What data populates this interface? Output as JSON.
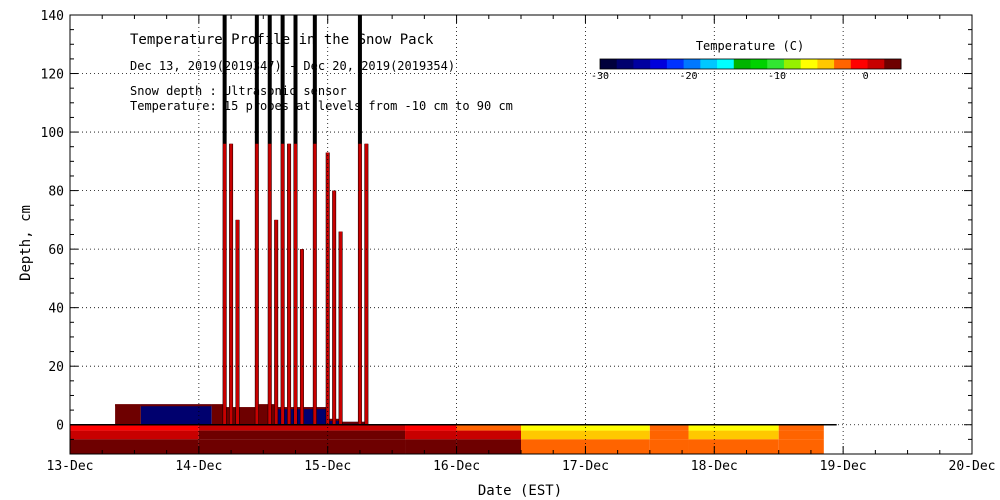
{
  "chart_data": {
    "type": "heatmap",
    "title": "Temperature Profile in the Snow Pack",
    "subtitle": "Dec 13, 2019(2019347) - Dec 20, 2019(2019354)",
    "annotations": [
      "Snow depth : Ultrasonic sensor",
      "Temperature: 15 probes at levels from -10 cm to 90 cm"
    ],
    "xlabel": "Date (EST)",
    "ylabel": "Depth, cm",
    "x_ticks": [
      "13-Dec",
      "14-Dec",
      "15-Dec",
      "16-Dec",
      "17-Dec",
      "18-Dec",
      "19-Dec",
      "20-Dec"
    ],
    "xlim_days": [
      13,
      20
    ],
    "ylim": [
      -10,
      140
    ],
    "y_ticks": [
      0,
      20,
      40,
      60,
      80,
      100,
      120,
      140
    ],
    "grid": true,
    "colorbar": {
      "title": "Temperature (C)",
      "range": [
        -30,
        4
      ],
      "tick_values": [
        -30,
        -20,
        -10,
        0
      ],
      "tick_labels": [
        "-30",
        "-20",
        "-10",
        "0"
      ],
      "colors": [
        "#00003c",
        "#00006e",
        "#0000a0",
        "#0000dc",
        "#0032ff",
        "#0078ff",
        "#00c8ff",
        "#00ffff",
        "#00b400",
        "#00d200",
        "#32e632",
        "#96f000",
        "#ffff00",
        "#ffc800",
        "#ff6400",
        "#ff0000",
        "#c80000",
        "#6e0000"
      ]
    },
    "soil_temperature_bands": [
      {
        "day_start": 13.0,
        "day_end": 14.0,
        "top_temp": -1,
        "mid_temp": 2,
        "bottom_temp": 3
      },
      {
        "day_start": 14.0,
        "day_end": 15.6,
        "top_temp": 2,
        "mid_temp": 3,
        "bottom_temp": 3
      },
      {
        "day_start": 15.6,
        "day_end": 16.0,
        "top_temp": -1,
        "mid_temp": 2,
        "bottom_temp": 3
      },
      {
        "day_start": 16.0,
        "day_end": 16.5,
        "top_temp": -2,
        "mid_temp": 1,
        "bottom_temp": 3
      },
      {
        "day_start": 16.5,
        "day_end": 17.5,
        "top_temp": -7,
        "mid_temp": -5,
        "bottom_temp": -3
      },
      {
        "day_start": 17.5,
        "day_end": 17.8,
        "top_temp": -3,
        "mid_temp": -2,
        "bottom_temp": -3
      },
      {
        "day_start": 17.8,
        "day_end": 18.5,
        "top_temp": -6,
        "mid_temp": -4,
        "bottom_temp": -3
      },
      {
        "day_start": 18.5,
        "day_end": 18.85,
        "top_temp": -3,
        "mid_temp": -3,
        "bottom_temp": -3
      }
    ],
    "snow_depth_low": [
      {
        "day_start": 13.35,
        "day_end": 13.55,
        "depth": 7,
        "temp": 3
      },
      {
        "day_start": 13.55,
        "day_end": 14.1,
        "depth": 7,
        "temp": -28
      },
      {
        "day_start": 14.1,
        "day_end": 14.2,
        "depth": 7,
        "temp": 3
      },
      {
        "day_start": 14.2,
        "day_end": 14.45,
        "depth": 6,
        "temp": 3
      },
      {
        "day_start": 14.45,
        "day_end": 14.6,
        "depth": 7,
        "temp": 3
      },
      {
        "day_start": 14.6,
        "day_end": 15.0,
        "depth": 6,
        "temp": -28
      },
      {
        "day_start": 15.0,
        "day_end": 15.1,
        "depth": 2,
        "temp": -28
      },
      {
        "day_start": 15.1,
        "day_end": 15.3,
        "depth": 1,
        "temp": -28
      }
    ],
    "snow_depth_spikes": [
      {
        "day": 14.2,
        "depth": 140
      },
      {
        "day": 14.25,
        "depth": 96
      },
      {
        "day": 14.3,
        "depth": 70
      },
      {
        "day": 14.45,
        "depth": 140
      },
      {
        "day": 14.55,
        "depth": 140
      },
      {
        "day": 14.6,
        "depth": 70
      },
      {
        "day": 14.65,
        "depth": 140
      },
      {
        "day": 14.7,
        "depth": 96
      },
      {
        "day": 14.75,
        "depth": 140
      },
      {
        "day": 14.8,
        "depth": 60
      },
      {
        "day": 14.9,
        "depth": 140
      },
      {
        "day": 15.0,
        "depth": 93
      },
      {
        "day": 15.05,
        "depth": 80
      },
      {
        "day": 15.1,
        "depth": 66
      },
      {
        "day": 15.25,
        "depth": 140
      },
      {
        "day": 15.3,
        "depth": 96
      }
    ]
  }
}
